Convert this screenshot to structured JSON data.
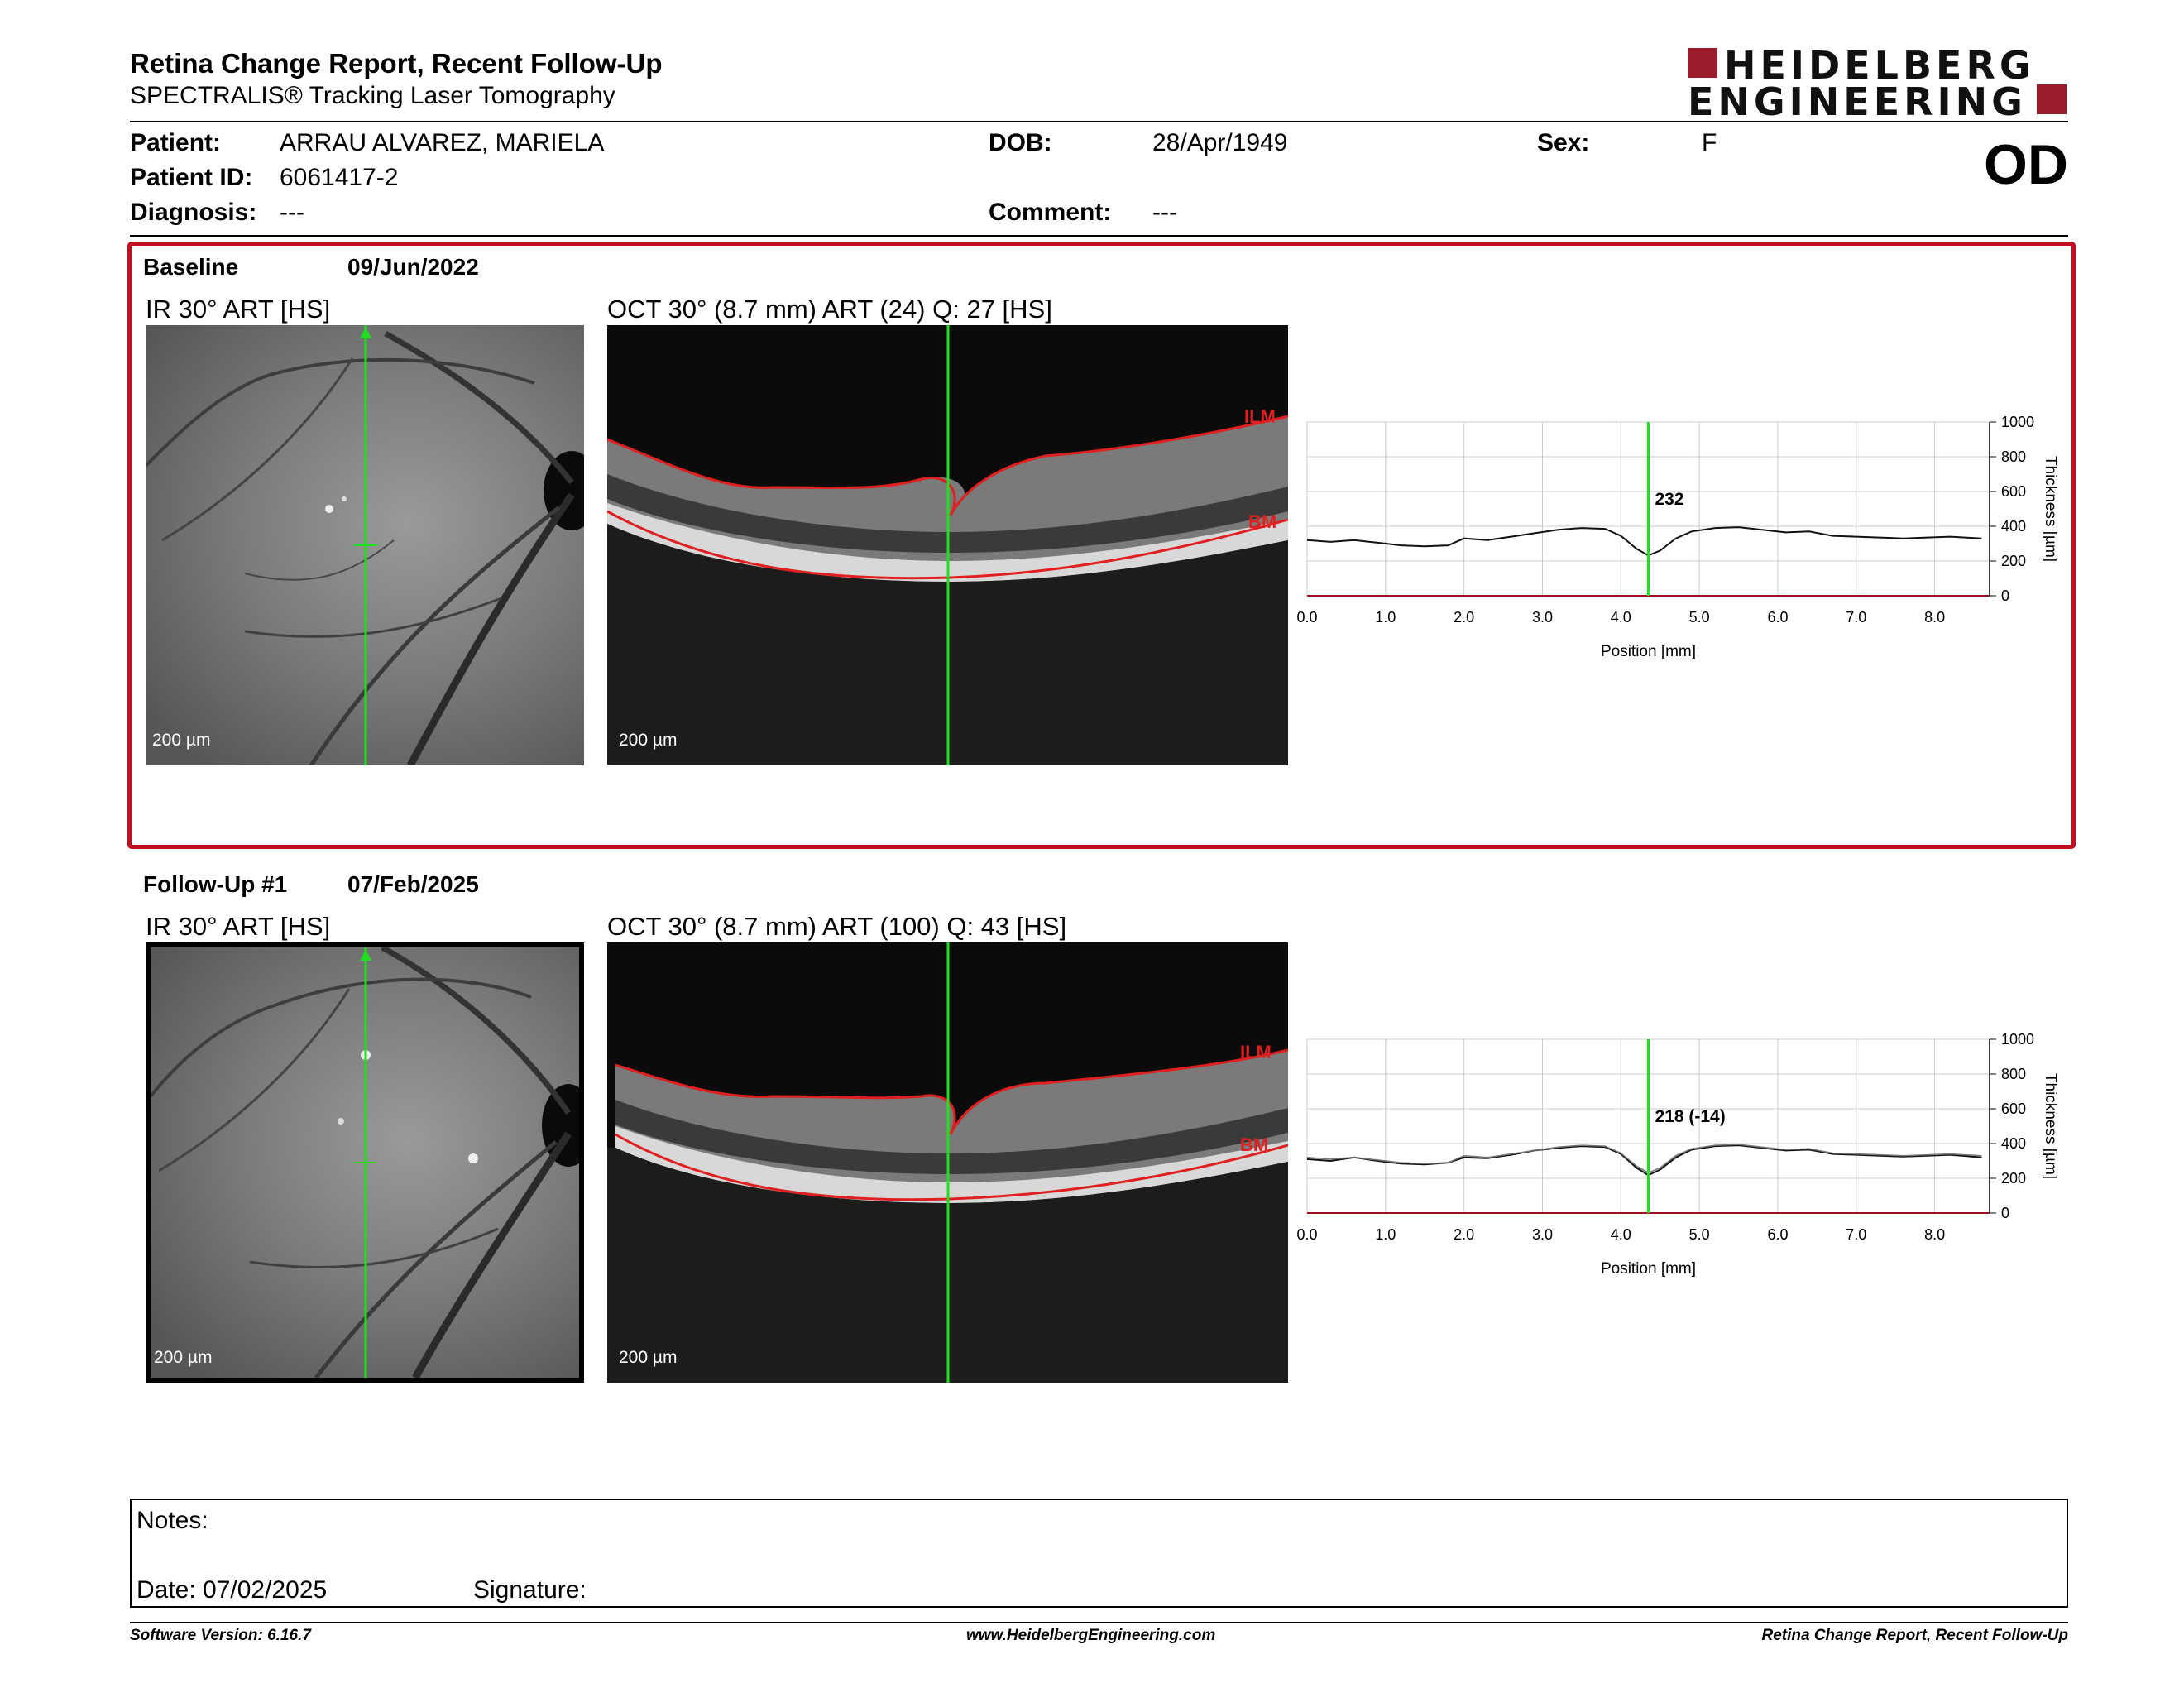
{
  "header": {
    "title": "Retina Change Report, Recent Follow-Up",
    "subtitle": "SPECTRALIS® Tracking Laser Tomography",
    "logo_line1": "HEIDELBERG",
    "logo_line2": "ENGINEERING"
  },
  "patient": {
    "patient_label": "Patient:",
    "patient_value": "ARRAU ALVAREZ, MARIELA",
    "id_label": "Patient ID:",
    "id_value": "6061417-2",
    "diagnosis_label": "Diagnosis:",
    "diagnosis_value": "---",
    "dob_label": "DOB:",
    "dob_value": "28/Apr/1949",
    "comment_label": "Comment:",
    "comment_value": "---",
    "sex_label": "Sex:",
    "sex_value": "F",
    "eye": "OD"
  },
  "baseline": {
    "label": "Baseline",
    "date": "09/Jun/2022",
    "ir_label": "IR 30° ART [HS]",
    "oct_label": "OCT 30° (8.7 mm) ART (24) Q: 27 [HS]",
    "scale_label": "200 µm",
    "ilm": "ILM",
    "bm": "BM"
  },
  "followup": {
    "label": "Follow-Up #1",
    "date": "07/Feb/2025",
    "ir_label": "IR 30° ART [HS]",
    "oct_label": "OCT 30° (8.7 mm) ART (100) Q: 43 [HS]",
    "scale_label": "200 µm",
    "ilm": "ILM",
    "bm": "BM"
  },
  "chart_data": [
    {
      "type": "line",
      "xlabel": "Position [mm]",
      "ylabel": "Thickness [µm]",
      "xlim": [
        0,
        8.7
      ],
      "ylim": [
        0,
        1000
      ],
      "xticks": [
        "0.0",
        "1.0",
        "2.0",
        "3.0",
        "4.0",
        "5.0",
        "6.0",
        "7.0",
        "8.0"
      ],
      "yticks": [
        "0",
        "200",
        "400",
        "600",
        "800",
        "1000"
      ],
      "marker_x": 4.35,
      "marker_label": "232",
      "series": [
        {
          "x": [
            0,
            0.3,
            0.6,
            0.9,
            1.2,
            1.5,
            1.8,
            2.0,
            2.3,
            2.6,
            2.9,
            3.2,
            3.5,
            3.8,
            4.0,
            4.2,
            4.35,
            4.5,
            4.7,
            4.9,
            5.2,
            5.5,
            5.8,
            6.1,
            6.4,
            6.7,
            7.0,
            7.3,
            7.6,
            7.9,
            8.2,
            8.6
          ],
          "y": [
            320,
            310,
            320,
            305,
            290,
            285,
            290,
            330,
            320,
            340,
            360,
            380,
            390,
            385,
            345,
            270,
            232,
            260,
            330,
            370,
            390,
            395,
            380,
            365,
            370,
            345,
            340,
            335,
            330,
            335,
            340,
            330
          ]
        }
      ]
    },
    {
      "type": "line",
      "xlabel": "Position [mm]",
      "ylabel": "Thickness [µm]",
      "xlim": [
        0,
        8.7
      ],
      "ylim": [
        0,
        1000
      ],
      "xticks": [
        "0.0",
        "1.0",
        "2.0",
        "3.0",
        "4.0",
        "5.0",
        "6.0",
        "7.0",
        "8.0"
      ],
      "yticks": [
        "0",
        "200",
        "400",
        "600",
        "800",
        "1000"
      ],
      "marker_x": 4.35,
      "marker_label": "218 (-14)",
      "series": [
        {
          "x": [
            0,
            0.3,
            0.6,
            0.9,
            1.2,
            1.5,
            1.8,
            2.0,
            2.3,
            2.6,
            2.9,
            3.2,
            3.5,
            3.8,
            4.0,
            4.2,
            4.35,
            4.5,
            4.7,
            4.9,
            5.2,
            5.5,
            5.8,
            6.1,
            6.4,
            6.7,
            7.0,
            7.3,
            7.6,
            7.9,
            8.2,
            8.6
          ],
          "y": [
            310,
            300,
            320,
            300,
            285,
            280,
            290,
            320,
            315,
            335,
            360,
            375,
            385,
            380,
            340,
            260,
            218,
            250,
            320,
            365,
            385,
            390,
            375,
            360,
            365,
            340,
            335,
            330,
            325,
            330,
            335,
            320
          ]
        },
        {
          "x": [
            0,
            0.3,
            0.6,
            0.9,
            1.2,
            1.5,
            1.8,
            2.0,
            2.3,
            2.6,
            2.9,
            3.2,
            3.5,
            3.8,
            4.0,
            4.2,
            4.35,
            4.5,
            4.7,
            4.9,
            5.2,
            5.5,
            5.8,
            6.1,
            6.4,
            6.7,
            7.0,
            7.3,
            7.6,
            7.9,
            8.2,
            8.6
          ],
          "y": [
            320,
            310,
            320,
            305,
            290,
            285,
            290,
            330,
            320,
            340,
            360,
            380,
            390,
            385,
            345,
            270,
            232,
            260,
            330,
            370,
            390,
            395,
            380,
            365,
            370,
            345,
            340,
            335,
            330,
            335,
            340,
            330
          ]
        }
      ]
    }
  ],
  "notes": {
    "notes_label": "Notes:",
    "date_label": "Date: 07/02/2025",
    "signature_label": "Signature:"
  },
  "footer": {
    "software": "Software Version: 6.16.7",
    "website": "www.HeidelbergEngineering.com",
    "report": "Retina Change Report, Recent Follow-Up"
  },
  "colors": {
    "accent_red": "#c0101f",
    "logo_red": "#9b1c2c",
    "marker_green": "#22dd22",
    "layer_red": "#e02020"
  }
}
